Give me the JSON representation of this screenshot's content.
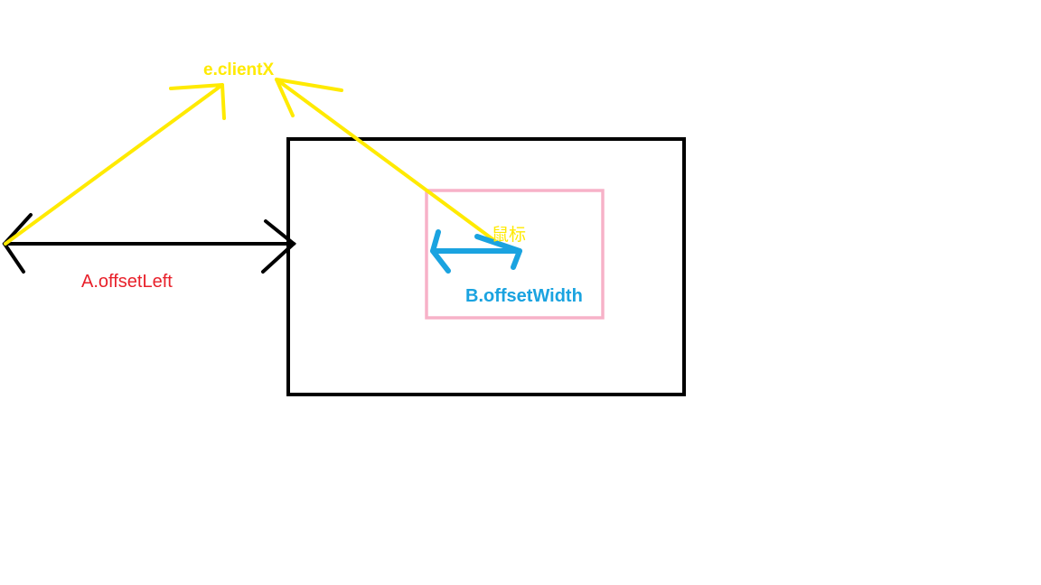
{
  "labels": {
    "client_x": "e.clientX",
    "offset_left": "A.offsetLeft",
    "mouse": "鼠标",
    "offset_width": "B.offsetWidth"
  },
  "colors": {
    "client_x": "#ffea00",
    "offset_left": "#e8202a",
    "mouse": "#ffea00",
    "offset_width": "#1aa3e0",
    "outer_box": "#000000",
    "inner_box": "#f7b2c8",
    "offset_left_arrow": "#000000",
    "offset_width_arrow": "#1aa3e0",
    "pointer_lines": "#ffea00"
  }
}
